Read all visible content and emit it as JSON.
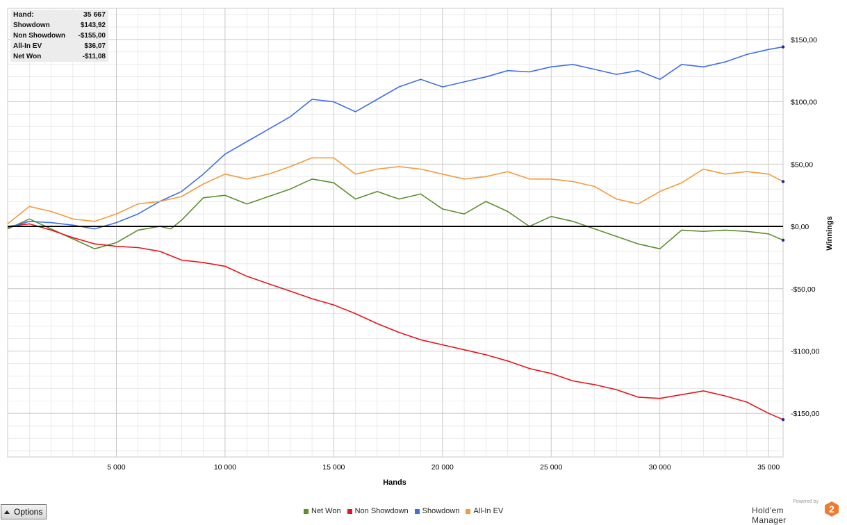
{
  "summary": {
    "rows": [
      {
        "label": "Hand:",
        "value": "35 667"
      },
      {
        "label": "Showdown",
        "value": "$143,92"
      },
      {
        "label": "Non Showdown",
        "value": "-$155,00"
      },
      {
        "label": "All-In EV",
        "value": "$36,07"
      },
      {
        "label": "Net Won",
        "value": "-$11,08"
      }
    ]
  },
  "controls": {
    "options_label": "Options"
  },
  "brand": {
    "powered_by": "Powered by",
    "name": "Hold'em Manager",
    "logo_number": "2"
  },
  "colors": {
    "net_won": "#5a8f2b",
    "non_showdown": "#e8141b",
    "showdown": "#3e6ee8",
    "all_in_ev": "#f39a3c",
    "zero_line": "#000000",
    "grid": "#dcdcdc"
  },
  "chart_data": {
    "type": "line",
    "xlabel": "Hands",
    "ylabel": "Winnings",
    "xlim": [
      0,
      35667
    ],
    "ylim": [
      -185,
      175
    ],
    "x_ticks": [
      5000,
      10000,
      15000,
      20000,
      25000,
      30000,
      35000
    ],
    "x_tick_labels": [
      "5 000",
      "10 000",
      "15 000",
      "20 000",
      "25 000",
      "30 000",
      "35 000"
    ],
    "y_ticks": [
      150,
      100,
      50,
      0,
      -50,
      -100,
      -150
    ],
    "y_tick_labels": [
      "$150,00",
      "$100,00",
      "$50,00",
      "$0,00",
      "-$50,00",
      "-$100,00",
      "-$150,00"
    ],
    "grid": true,
    "legend_position": "bottom-center",
    "series": [
      {
        "name": "Net Won",
        "color": "#5a8f2b",
        "x": [
          0,
          1000,
          2000,
          3000,
          4000,
          5000,
          6000,
          7000,
          7500,
          8000,
          9000,
          10000,
          11000,
          12000,
          13000,
          14000,
          15000,
          16000,
          17000,
          18000,
          19000,
          20000,
          21000,
          22000,
          23000,
          24000,
          25000,
          26000,
          27000,
          28000,
          29000,
          30000,
          31000,
          32000,
          33000,
          34000,
          35000,
          35667
        ],
        "y": [
          -2,
          6,
          -2,
          -10,
          -18,
          -13,
          -3,
          0,
          -2,
          5,
          23,
          25,
          18,
          24,
          30,
          38,
          35,
          22,
          28,
          22,
          26,
          14,
          10,
          20,
          12,
          0,
          8,
          4,
          -2,
          -8,
          -14,
          -18,
          -3,
          -4,
          -3,
          -4,
          -6,
          -11
        ]
      },
      {
        "name": "Non Showdown",
        "color": "#e8141b",
        "x": [
          0,
          1000,
          2000,
          3000,
          4000,
          5000,
          6000,
          7000,
          8000,
          9000,
          10000,
          11000,
          12000,
          13000,
          14000,
          15000,
          16000,
          17000,
          18000,
          19000,
          20000,
          21000,
          22000,
          23000,
          24000,
          25000,
          26000,
          27000,
          28000,
          29000,
          30000,
          31000,
          32000,
          33000,
          34000,
          35000,
          35667
        ],
        "y": [
          0,
          2,
          -3,
          -9,
          -14,
          -16,
          -17,
          -20,
          -27,
          -29,
          -32,
          -40,
          -46,
          -52,
          -58,
          -63,
          -70,
          -78,
          -85,
          -91,
          -95,
          -99,
          -103,
          -108,
          -114,
          -118,
          -124,
          -127,
          -131,
          -137,
          -138,
          -135,
          -132,
          -136,
          -141,
          -150,
          -155
        ]
      },
      {
        "name": "Showdown",
        "color": "#3e6ee8",
        "x": [
          0,
          1000,
          2000,
          3000,
          4000,
          5000,
          6000,
          7000,
          8000,
          9000,
          10000,
          11000,
          12000,
          13000,
          14000,
          15000,
          16000,
          17000,
          18000,
          19000,
          20000,
          21000,
          22000,
          23000,
          24000,
          25000,
          26000,
          27000,
          28000,
          29000,
          30000,
          31000,
          32000,
          33000,
          34000,
          35000,
          35667
        ],
        "y": [
          -1,
          4,
          3,
          1,
          -2,
          3,
          10,
          20,
          28,
          42,
          58,
          68,
          78,
          88,
          102,
          100,
          92,
          102,
          112,
          118,
          112,
          116,
          120,
          125,
          124,
          128,
          130,
          126,
          122,
          125,
          118,
          130,
          128,
          132,
          138,
          142,
          144
        ]
      },
      {
        "name": "All-In EV",
        "color": "#f39a3c",
        "x": [
          0,
          1000,
          2000,
          3000,
          4000,
          5000,
          6000,
          7000,
          8000,
          9000,
          10000,
          11000,
          12000,
          13000,
          14000,
          15000,
          16000,
          17000,
          18000,
          19000,
          20000,
          21000,
          22000,
          23000,
          24000,
          25000,
          26000,
          27000,
          28000,
          29000,
          30000,
          31000,
          32000,
          33000,
          34000,
          35000,
          35667
        ],
        "y": [
          2,
          16,
          12,
          6,
          4,
          10,
          18,
          20,
          24,
          34,
          42,
          38,
          42,
          48,
          55,
          55,
          42,
          46,
          48,
          46,
          42,
          38,
          40,
          44,
          38,
          38,
          36,
          32,
          22,
          18,
          28,
          35,
          46,
          42,
          44,
          42,
          36
        ]
      }
    ]
  }
}
